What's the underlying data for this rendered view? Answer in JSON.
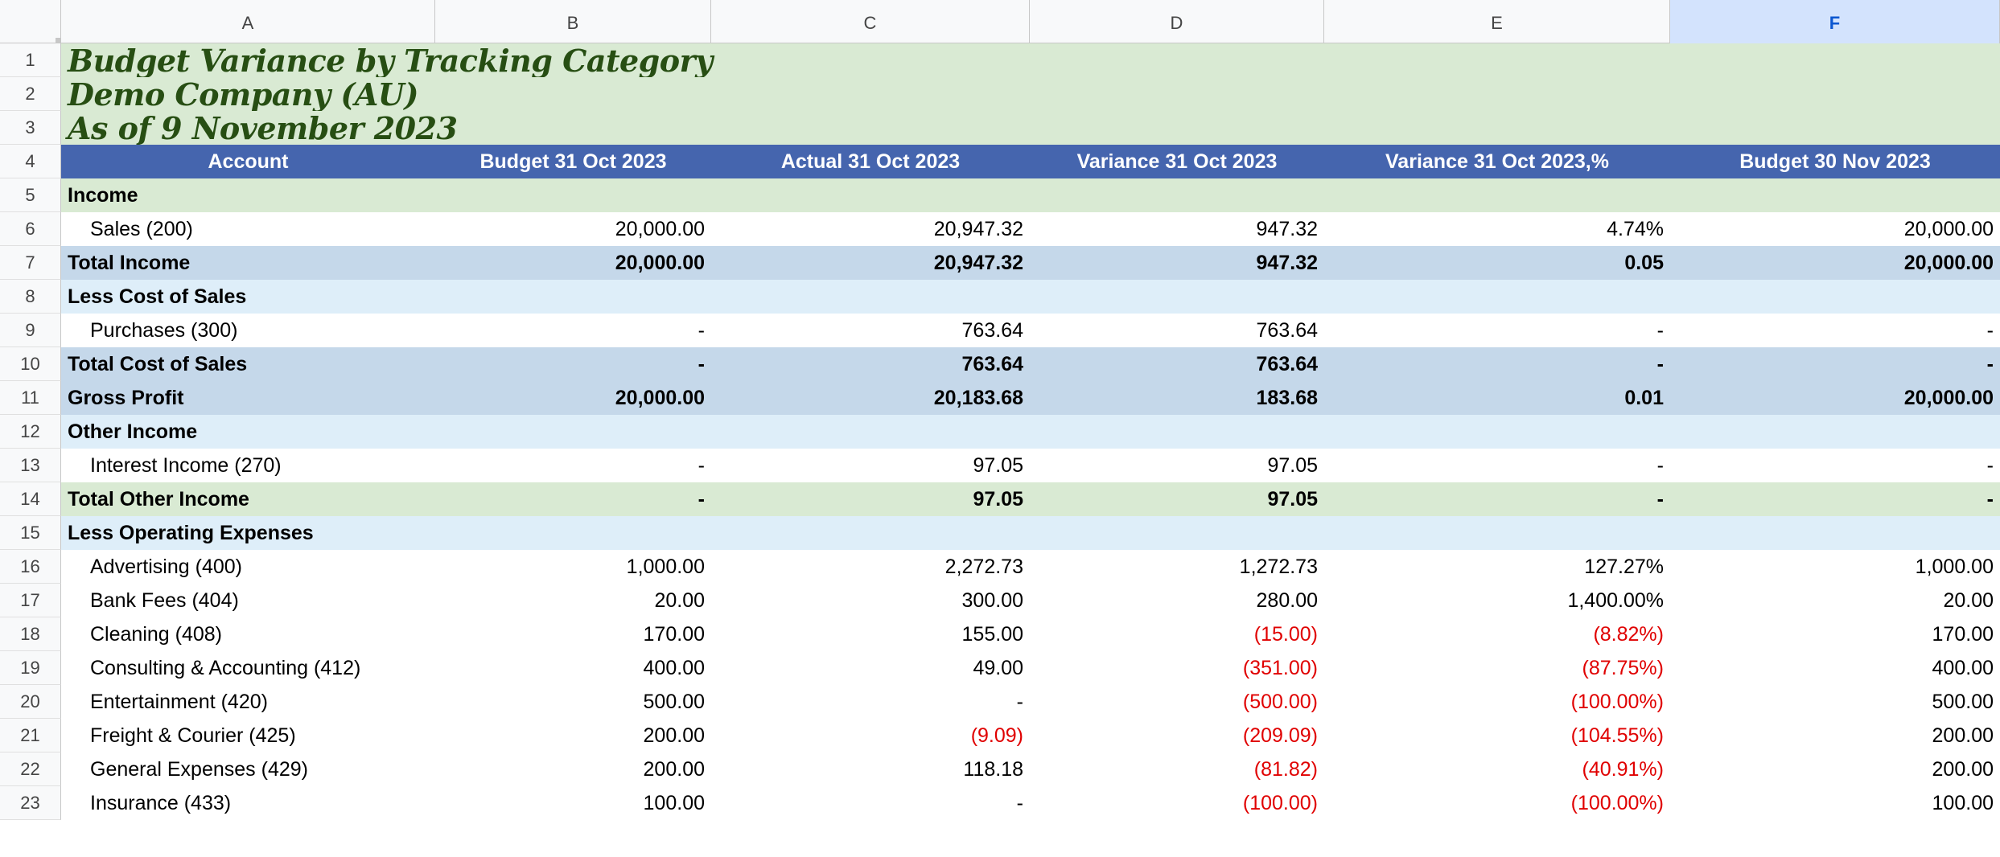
{
  "columns": [
    "A",
    "B",
    "C",
    "D",
    "E",
    "F"
  ],
  "selected_column": "F",
  "title": {
    "line1": "Budget Variance by Tracking Category",
    "line2": "Demo Company (AU)",
    "line3": "As of 9 November 2023"
  },
  "header": [
    "Account",
    "Budget 31 Oct 2023",
    "Actual 31 Oct 2023",
    "Variance 31 Oct 2023",
    "Variance 31 Oct 2023,%",
    "Budget 30 Nov 2023"
  ],
  "rows": [
    {
      "num": "5",
      "type": "section-green",
      "cells": [
        "Income",
        "",
        "",
        "",
        "",
        ""
      ]
    },
    {
      "num": "6",
      "type": "data",
      "cells": [
        "Sales (200)",
        "20,000.00",
        "20,947.32",
        "947.32",
        "4.74%",
        "20,000.00"
      ]
    },
    {
      "num": "7",
      "type": "total",
      "cells": [
        "Total Income",
        "20,000.00",
        "20,947.32",
        "947.32",
        "0.05",
        "20,000.00"
      ]
    },
    {
      "num": "8",
      "type": "section-blue",
      "cells": [
        "Less Cost of Sales",
        "",
        "",
        "",
        "",
        ""
      ]
    },
    {
      "num": "9",
      "type": "data",
      "cells": [
        "Purchases (300)",
        "-",
        "763.64",
        "763.64",
        "-",
        "-"
      ]
    },
    {
      "num": "10",
      "type": "total",
      "cells": [
        "Total Cost of Sales",
        "-",
        "763.64",
        "763.64",
        "-",
        "-"
      ]
    },
    {
      "num": "11",
      "type": "total",
      "cells": [
        "Gross Profit",
        "20,000.00",
        "20,183.68",
        "183.68",
        "0.01",
        "20,000.00"
      ]
    },
    {
      "num": "12",
      "type": "section-blue",
      "cells": [
        "Other Income",
        "",
        "",
        "",
        "",
        ""
      ]
    },
    {
      "num": "13",
      "type": "data",
      "cells": [
        "Interest Income (270)",
        "-",
        "97.05",
        "97.05",
        "-",
        "-"
      ]
    },
    {
      "num": "14",
      "type": "total-green",
      "cells": [
        "Total Other Income",
        "-",
        "97.05",
        "97.05",
        "-",
        "-"
      ]
    },
    {
      "num": "15",
      "type": "section-blue",
      "cells": [
        "Less Operating Expenses",
        "",
        "",
        "",
        "",
        ""
      ]
    },
    {
      "num": "16",
      "type": "data",
      "cells": [
        "Advertising (400)",
        "1,000.00",
        "2,272.73",
        "1,272.73",
        "127.27%",
        "1,000.00"
      ]
    },
    {
      "num": "17",
      "type": "data",
      "cells": [
        "Bank Fees (404)",
        "20.00",
        "300.00",
        "280.00",
        "1,400.00%",
        "20.00"
      ]
    },
    {
      "num": "18",
      "type": "data",
      "cells": [
        "Cleaning (408)",
        "170.00",
        "155.00",
        "(15.00)",
        "(8.82%)",
        "170.00"
      ]
    },
    {
      "num": "19",
      "type": "data",
      "cells": [
        "Consulting & Accounting (412)",
        "400.00",
        "49.00",
        "(351.00)",
        "(87.75%)",
        "400.00"
      ]
    },
    {
      "num": "20",
      "type": "data",
      "cells": [
        "Entertainment (420)",
        "500.00",
        "-",
        "(500.00)",
        "(100.00%)",
        "500.00"
      ]
    },
    {
      "num": "21",
      "type": "data",
      "cells": [
        "Freight & Courier (425)",
        "200.00",
        "(9.09)",
        "(209.09)",
        "(104.55%)",
        "200.00"
      ]
    },
    {
      "num": "22",
      "type": "data",
      "cells": [
        "General Expenses (429)",
        "200.00",
        "118.18",
        "(81.82)",
        "(40.91%)",
        "200.00"
      ]
    },
    {
      "num": "23",
      "type": "data",
      "cells": [
        "Insurance (433)",
        "100.00",
        "-",
        "(100.00)",
        "(100.00%)",
        "100.00"
      ]
    }
  ],
  "colors": {
    "title_bg": "#d9ead3",
    "title_text": "#274e13",
    "header_bg": "#4565ae",
    "total_bg": "#c5d8ea",
    "section_blue_bg": "#deeef9",
    "negative_text": "#e00000",
    "selected_col_bg": "#d3e3fd"
  }
}
